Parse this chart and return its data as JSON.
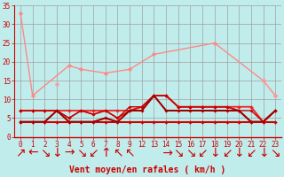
{
  "bg_color": "#c0ecec",
  "grid_color": "#a0a0a0",
  "xlabel": "Vent moyen/en rafales ( km/h )",
  "ylim": [
    0,
    35
  ],
  "yticks": [
    0,
    5,
    10,
    15,
    20,
    25,
    30,
    35
  ],
  "x_labels": [
    "0",
    "1",
    "2",
    "3",
    "4",
    "5",
    "6",
    "7",
    "8",
    "9",
    "",
    "",
    "12",
    "13",
    "14",
    "15",
    "16",
    "17",
    "18",
    "19",
    "20",
    "21",
    "22",
    "23"
  ],
  "x_display": [
    "0",
    "1",
    "2",
    "3",
    "4",
    "5",
    "6",
    "7",
    "8",
    "9",
    "12",
    "13",
    "14",
    "15",
    "16",
    "17",
    "18",
    "19",
    "20",
    "21",
    "22",
    "23"
  ],
  "arrow_row": [
    "↗",
    "←",
    "↘",
    "↓",
    "→",
    "↘",
    "↙",
    "↑",
    "↖",
    "↖",
    "",
    "",
    " →",
    "↘",
    "↘",
    "↙",
    "↓",
    "↙",
    "↓",
    "↙",
    "↓",
    "↘",
    "↓",
    "↘"
  ],
  "lines": [
    {
      "xi": [
        0,
        1,
        4,
        5,
        7,
        9,
        13,
        18,
        22,
        23
      ],
      "y": [
        33,
        11,
        19,
        18,
        17,
        18,
        22,
        25,
        15,
        11
      ],
      "color": "#ff8888",
      "lw": 1.0,
      "marker": "D",
      "ms": 2.5
    },
    {
      "xi": [
        3,
        21,
        22,
        23
      ],
      "y": [
        14,
        null,
        15,
        11
      ],
      "color": "#ff9999",
      "lw": 1.0,
      "marker": "D",
      "ms": 2.5
    },
    {
      "xi": [
        0,
        1,
        2,
        3,
        4,
        5,
        6,
        7,
        8,
        9,
        12,
        13,
        14,
        15,
        16,
        17,
        18,
        19,
        20,
        21,
        22,
        23
      ],
      "y": [
        4,
        4,
        4,
        4,
        4,
        4,
        4,
        4,
        4,
        4,
        4,
        4,
        4,
        4,
        4,
        4,
        4,
        4,
        4,
        4,
        4,
        4
      ],
      "color": "#cc0000",
      "lw": 1.5,
      "marker": "D",
      "ms": 2.0
    },
    {
      "xi": [
        0,
        1,
        2,
        3,
        4,
        5,
        6,
        7,
        8,
        9,
        12,
        13,
        14,
        15,
        16,
        17,
        18,
        19,
        20,
        21,
        22,
        23
      ],
      "y": [
        7,
        7,
        7,
        7,
        7,
        7,
        7,
        7,
        7,
        7,
        8,
        11,
        11,
        8,
        8,
        8,
        8,
        8,
        8,
        8,
        4,
        7
      ],
      "color": "#ee2222",
      "lw": 1.3,
      "marker": "D",
      "ms": 2.0
    },
    {
      "xi": [
        0,
        1,
        2,
        3,
        4,
        5,
        6,
        7,
        8,
        9,
        12,
        13,
        14,
        15,
        16,
        17,
        18,
        19,
        20,
        21,
        22,
        23
      ],
      "y": [
        7,
        7,
        7,
        7,
        5,
        7,
        6,
        7,
        5,
        7,
        8,
        11,
        11,
        8,
        8,
        8,
        8,
        8,
        7,
        4,
        4,
        7
      ],
      "color": "#dd1111",
      "lw": 1.1,
      "marker": "D",
      "ms": 1.8
    },
    {
      "xi": [
        0,
        1,
        2,
        3,
        4,
        5,
        6,
        7,
        8,
        9,
        12,
        13,
        14,
        15,
        16,
        17,
        18,
        19,
        20,
        21,
        22,
        23
      ],
      "y": [
        7,
        7,
        7,
        7,
        5,
        7,
        6,
        7,
        5,
        8,
        8,
        11,
        11,
        8,
        8,
        8,
        8,
        8,
        7,
        7,
        4,
        7
      ],
      "color": "#cc0000",
      "lw": 1.0,
      "marker": "D",
      "ms": 1.8
    },
    {
      "xi": [
        0,
        1,
        2,
        3,
        4,
        5,
        6,
        7,
        8,
        9,
        12,
        13,
        14,
        15,
        16,
        17,
        18,
        19,
        20,
        21,
        22,
        23
      ],
      "y": [
        4,
        4,
        4,
        7,
        4,
        4,
        4,
        5,
        4,
        7,
        7,
        11,
        7,
        7,
        7,
        7,
        7,
        7,
        7,
        4,
        4,
        7
      ],
      "color": "#ff4444",
      "lw": 1.1,
      "marker": "D",
      "ms": 2.0
    },
    {
      "xi": [
        0,
        1,
        2,
        3,
        4,
        5,
        6,
        7,
        8,
        9,
        12,
        13,
        14,
        15,
        16,
        17,
        18,
        19,
        20,
        21,
        22,
        23
      ],
      "y": [
        4,
        4,
        4,
        7,
        4,
        4,
        4,
        5,
        4,
        7,
        7,
        11,
        7,
        7,
        7,
        7,
        7,
        7,
        7,
        4,
        4,
        7
      ],
      "color": "#990000",
      "lw": 1.4,
      "marker": "D",
      "ms": 1.6
    }
  ],
  "tick_color": "#cc0000",
  "tick_fontsize": 5.5,
  "xlabel_fontsize": 7.0,
  "xlabel_color": "#cc0000",
  "arrow_fontsize": 5.0
}
